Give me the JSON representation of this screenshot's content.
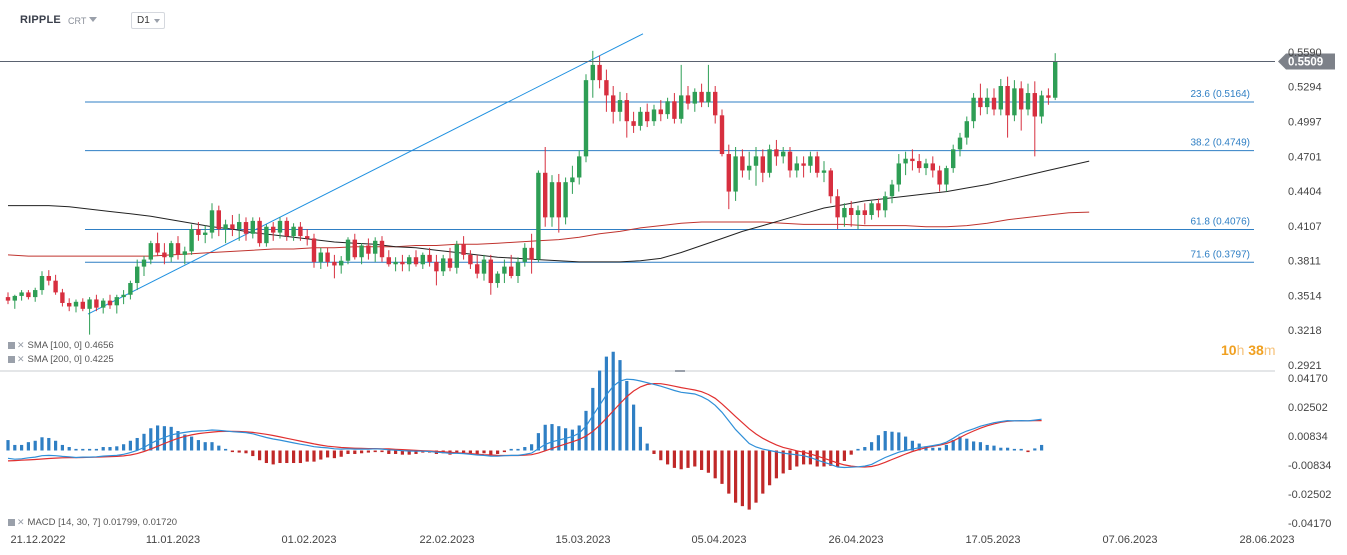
{
  "header": {
    "symbol": "RIPPLE",
    "source": "CRT",
    "timeframe": "D1"
  },
  "timer": {
    "hours": "10",
    "hours_unit": "h",
    "minutes": "38",
    "minutes_unit": "m"
  },
  "indicators": {
    "sma100": {
      "label": "SMA [100, 0]",
      "value": "0.4656"
    },
    "sma200": {
      "label": "SMA [200, 0]",
      "value": "0.4225"
    },
    "macd": {
      "label": "MACD [14, 30, 7]",
      "value1": "0.01799",
      "value2": "0.01720"
    }
  },
  "colors": {
    "up": "#2e9e55",
    "down": "#d72f3f",
    "sma100": "#222222",
    "sma200": "#c0342f",
    "macd_line": "#2f8fd8",
    "signal_line": "#e03030",
    "hist_pos": "#2f7fc4",
    "hist_neg": "#c02828",
    "fib": "#2f7fc4",
    "price_tag": "#7d8189"
  },
  "chart_data": {
    "type": "candlestick",
    "price_axis": {
      "ticks": [
        "0.5590",
        "0.5294",
        "0.4997",
        "0.4701",
        "0.4404",
        "0.4107",
        "0.3811",
        "0.3514",
        "0.3218",
        "0.2921"
      ],
      "ylim": [
        0.29,
        0.585
      ]
    },
    "current_price": {
      "value": 0.5509,
      "label": "0.5509"
    },
    "macd_axis": {
      "ticks": [
        "0.04170",
        "0.02502",
        "0.00834",
        "-0.00834",
        "-0.02502",
        "-0.04170"
      ],
      "ylim": [
        -0.043,
        0.043
      ]
    },
    "x_ticks": [
      "21.12.2022",
      "11.01.2023",
      "01.02.2023",
      "22.02.2023",
      "15.03.2023",
      "05.04.2023",
      "26.04.2023",
      "17.05.2023",
      "07.06.2023",
      "28.06.2023"
    ],
    "fibonacci": [
      {
        "level": "23.6",
        "label": "23.6 (0.5164)",
        "price": 0.5164
      },
      {
        "level": "38.2",
        "label": "38.2 (0.4749)",
        "price": 0.4749
      },
      {
        "level": "61.8",
        "label": "61.8 (0.4076)",
        "price": 0.4076
      },
      {
        "level": "71.6",
        "label": "71.6 (0.3797)",
        "price": 0.3797
      }
    ],
    "trendline": {
      "from": {
        "day": 0,
        "price": 0.3355
      },
      "to": {
        "day": 94,
        "price": 0.5745
      }
    },
    "candles": [
      [
        0.35,
        0.354,
        0.344,
        0.347
      ],
      [
        0.347,
        0.352,
        0.34,
        0.351
      ],
      [
        0.351,
        0.356,
        0.347,
        0.354
      ],
      [
        0.354,
        0.356,
        0.348,
        0.35
      ],
      [
        0.35,
        0.358,
        0.346,
        0.356
      ],
      [
        0.356,
        0.372,
        0.352,
        0.368
      ],
      [
        0.368,
        0.373,
        0.36,
        0.364
      ],
      [
        0.364,
        0.369,
        0.352,
        0.354
      ],
      [
        0.354,
        0.357,
        0.342,
        0.345
      ],
      [
        0.345,
        0.349,
        0.338,
        0.342
      ],
      [
        0.342,
        0.348,
        0.337,
        0.346
      ],
      [
        0.346,
        0.349,
        0.338,
        0.34
      ],
      [
        0.34,
        0.35,
        0.318,
        0.348
      ],
      [
        0.348,
        0.352,
        0.338,
        0.341
      ],
      [
        0.341,
        0.349,
        0.336,
        0.347
      ],
      [
        0.347,
        0.352,
        0.34,
        0.343
      ],
      [
        0.343,
        0.352,
        0.336,
        0.35
      ],
      [
        0.35,
        0.356,
        0.344,
        0.352
      ],
      [
        0.352,
        0.364,
        0.348,
        0.362
      ],
      [
        0.362,
        0.382,
        0.356,
        0.376
      ],
      [
        0.376,
        0.385,
        0.368,
        0.382
      ],
      [
        0.382,
        0.398,
        0.378,
        0.396
      ],
      [
        0.396,
        0.405,
        0.385,
        0.388
      ],
      [
        0.388,
        0.396,
        0.378,
        0.384
      ],
      [
        0.384,
        0.398,
        0.38,
        0.396
      ],
      [
        0.396,
        0.402,
        0.382,
        0.386
      ],
      [
        0.386,
        0.393,
        0.378,
        0.389
      ],
      [
        0.389,
        0.412,
        0.386,
        0.408
      ],
      [
        0.408,
        0.414,
        0.398,
        0.403
      ],
      [
        0.403,
        0.411,
        0.396,
        0.405
      ],
      [
        0.405,
        0.43,
        0.4,
        0.424
      ],
      [
        0.424,
        0.428,
        0.402,
        0.408
      ],
      [
        0.408,
        0.416,
        0.396,
        0.412
      ],
      [
        0.412,
        0.42,
        0.402,
        0.408
      ],
      [
        0.408,
        0.421,
        0.398,
        0.414
      ],
      [
        0.414,
        0.418,
        0.398,
        0.404
      ],
      [
        0.404,
        0.418,
        0.4,
        0.415
      ],
      [
        0.415,
        0.418,
        0.393,
        0.396
      ],
      [
        0.396,
        0.412,
        0.393,
        0.41
      ],
      [
        0.41,
        0.414,
        0.398,
        0.405
      ],
      [
        0.405,
        0.418,
        0.4,
        0.415
      ],
      [
        0.415,
        0.418,
        0.398,
        0.402
      ],
      [
        0.402,
        0.413,
        0.398,
        0.41
      ],
      [
        0.41,
        0.414,
        0.398,
        0.402
      ],
      [
        0.402,
        0.408,
        0.394,
        0.4
      ],
      [
        0.4,
        0.404,
        0.375,
        0.38
      ],
      [
        0.38,
        0.392,
        0.374,
        0.388
      ],
      [
        0.388,
        0.392,
        0.376,
        0.38
      ],
      [
        0.38,
        0.386,
        0.366,
        0.377
      ],
      [
        0.377,
        0.385,
        0.37,
        0.381
      ],
      [
        0.381,
        0.401,
        0.378,
        0.399
      ],
      [
        0.399,
        0.404,
        0.382,
        0.384
      ],
      [
        0.384,
        0.396,
        0.378,
        0.394
      ],
      [
        0.394,
        0.4,
        0.382,
        0.387
      ],
      [
        0.387,
        0.401,
        0.38,
        0.398
      ],
      [
        0.398,
        0.402,
        0.38,
        0.384
      ],
      [
        0.384,
        0.39,
        0.376,
        0.378
      ],
      [
        0.378,
        0.384,
        0.372,
        0.38
      ],
      [
        0.38,
        0.386,
        0.372,
        0.378
      ],
      [
        0.378,
        0.386,
        0.372,
        0.384
      ],
      [
        0.384,
        0.39,
        0.376,
        0.378
      ],
      [
        0.378,
        0.388,
        0.374,
        0.386
      ],
      [
        0.386,
        0.392,
        0.376,
        0.38
      ],
      [
        0.38,
        0.386,
        0.36,
        0.372
      ],
      [
        0.372,
        0.386,
        0.368,
        0.383
      ],
      [
        0.383,
        0.392,
        0.372,
        0.375
      ],
      [
        0.375,
        0.398,
        0.37,
        0.395
      ],
      [
        0.395,
        0.402,
        0.382,
        0.386
      ],
      [
        0.386,
        0.39,
        0.374,
        0.378
      ],
      [
        0.378,
        0.386,
        0.366,
        0.37
      ],
      [
        0.37,
        0.386,
        0.364,
        0.382
      ],
      [
        0.382,
        0.386,
        0.352,
        0.362
      ],
      [
        0.362,
        0.372,
        0.358,
        0.37
      ],
      [
        0.37,
        0.382,
        0.362,
        0.376
      ],
      [
        0.376,
        0.386,
        0.366,
        0.368
      ],
      [
        0.368,
        0.384,
        0.362,
        0.38
      ],
      [
        0.38,
        0.396,
        0.376,
        0.392
      ],
      [
        0.392,
        0.404,
        0.37,
        0.382
      ],
      [
        0.382,
        0.458,
        0.38,
        0.456
      ],
      [
        0.456,
        0.478,
        0.41,
        0.418
      ],
      [
        0.418,
        0.454,
        0.41,
        0.448
      ],
      [
        0.448,
        0.455,
        0.405,
        0.418
      ],
      [
        0.418,
        0.452,
        0.412,
        0.448
      ],
      [
        0.448,
        0.462,
        0.438,
        0.452
      ],
      [
        0.452,
        0.475,
        0.446,
        0.47
      ],
      [
        0.47,
        0.54,
        0.465,
        0.535
      ],
      [
        0.535,
        0.56,
        0.52,
        0.548
      ],
      [
        0.548,
        0.556,
        0.528,
        0.535
      ],
      [
        0.535,
        0.544,
        0.508,
        0.522
      ],
      [
        0.522,
        0.53,
        0.498,
        0.508
      ],
      [
        0.508,
        0.525,
        0.5,
        0.518
      ],
      [
        0.518,
        0.524,
        0.486,
        0.5
      ],
      [
        0.5,
        0.508,
        0.49,
        0.496
      ],
      [
        0.496,
        0.512,
        0.492,
        0.508
      ],
      [
        0.508,
        0.515,
        0.495,
        0.5
      ],
      [
        0.5,
        0.514,
        0.496,
        0.51
      ],
      [
        0.51,
        0.518,
        0.5,
        0.506
      ],
      [
        0.506,
        0.52,
        0.502,
        0.517
      ],
      [
        0.517,
        0.524,
        0.498,
        0.502
      ],
      [
        0.502,
        0.548,
        0.498,
        0.522
      ],
      [
        0.522,
        0.53,
        0.51,
        0.515
      ],
      [
        0.515,
        0.528,
        0.508,
        0.525
      ],
      [
        0.525,
        0.532,
        0.512,
        0.516
      ],
      [
        0.516,
        0.548,
        0.512,
        0.525
      ],
      [
        0.525,
        0.53,
        0.498,
        0.505
      ],
      [
        0.505,
        0.51,
        0.47,
        0.472
      ],
      [
        0.472,
        0.48,
        0.425,
        0.44
      ],
      [
        0.44,
        0.478,
        0.432,
        0.47
      ],
      [
        0.47,
        0.476,
        0.452,
        0.458
      ],
      [
        0.458,
        0.474,
        0.45,
        0.462
      ],
      [
        0.462,
        0.478,
        0.445,
        0.47
      ],
      [
        0.47,
        0.476,
        0.448,
        0.456
      ],
      [
        0.456,
        0.48,
        0.452,
        0.476
      ],
      [
        0.476,
        0.484,
        0.462,
        0.47
      ],
      [
        0.47,
        0.478,
        0.464,
        0.474
      ],
      [
        0.474,
        0.478,
        0.452,
        0.458
      ],
      [
        0.458,
        0.47,
        0.452,
        0.464
      ],
      [
        0.464,
        0.47,
        0.452,
        0.462
      ],
      [
        0.462,
        0.474,
        0.456,
        0.47
      ],
      [
        0.47,
        0.474,
        0.452,
        0.456
      ],
      [
        0.456,
        0.466,
        0.448,
        0.458
      ],
      [
        0.458,
        0.46,
        0.43,
        0.436
      ],
      [
        0.436,
        0.442,
        0.408,
        0.418
      ],
      [
        0.418,
        0.43,
        0.41,
        0.426
      ],
      [
        0.426,
        0.432,
        0.41,
        0.42
      ],
      [
        0.42,
        0.428,
        0.408,
        0.424
      ],
      [
        0.424,
        0.43,
        0.412,
        0.42
      ],
      [
        0.42,
        0.432,
        0.416,
        0.43
      ],
      [
        0.43,
        0.434,
        0.418,
        0.424
      ],
      [
        0.424,
        0.44,
        0.418,
        0.436
      ],
      [
        0.436,
        0.45,
        0.43,
        0.446
      ],
      [
        0.446,
        0.472,
        0.44,
        0.464
      ],
      [
        0.464,
        0.474,
        0.454,
        0.468
      ],
      [
        0.468,
        0.476,
        0.458,
        0.466
      ],
      [
        0.466,
        0.472,
        0.456,
        0.46
      ],
      [
        0.46,
        0.468,
        0.454,
        0.464
      ],
      [
        0.464,
        0.47,
        0.452,
        0.458
      ],
      [
        0.458,
        0.462,
        0.44,
        0.446
      ],
      [
        0.446,
        0.462,
        0.44,
        0.46
      ],
      [
        0.46,
        0.48,
        0.456,
        0.476
      ],
      [
        0.476,
        0.49,
        0.47,
        0.486
      ],
      [
        0.486,
        0.504,
        0.48,
        0.5
      ],
      [
        0.5,
        0.524,
        0.494,
        0.52
      ],
      [
        0.52,
        0.532,
        0.505,
        0.512
      ],
      [
        0.512,
        0.528,
        0.506,
        0.52
      ],
      [
        0.52,
        0.528,
        0.505,
        0.51
      ],
      [
        0.51,
        0.536,
        0.505,
        0.53
      ],
      [
        0.53,
        0.538,
        0.486,
        0.505
      ],
      [
        0.505,
        0.535,
        0.5,
        0.528
      ],
      [
        0.528,
        0.534,
        0.492,
        0.51
      ],
      [
        0.51,
        0.532,
        0.505,
        0.524
      ],
      [
        0.524,
        0.534,
        0.47,
        0.504
      ],
      [
        0.504,
        0.526,
        0.498,
        0.522
      ],
      [
        0.522,
        0.528,
        0.514,
        0.52
      ],
      [
        0.52,
        0.558,
        0.518,
        0.5509
      ]
    ],
    "macd": [
      -0.0045,
      -0.005,
      -0.0048,
      -0.0042,
      -0.0038,
      -0.003,
      -0.0028,
      -0.003,
      -0.0034,
      -0.0036,
      -0.004,
      -0.0038,
      -0.0038,
      -0.0036,
      -0.0032,
      -0.003,
      -0.0028,
      -0.0022,
      -0.0012,
      0.0,
      0.0018,
      0.004,
      0.006,
      0.0075,
      0.009,
      0.0098,
      0.0104,
      0.011,
      0.0112,
      0.0114,
      0.0118,
      0.0116,
      0.0112,
      0.0108,
      0.0106,
      0.0103,
      0.0096,
      0.0085,
      0.0075,
      0.0066,
      0.006,
      0.0052,
      0.0044,
      0.0036,
      0.003,
      0.0022,
      0.0018,
      0.0015,
      0.001,
      0.0008,
      0.001,
      0.0008,
      0.0008,
      0.0008,
      0.001,
      0.0008,
      0.0004,
      0.0002,
      -0.0001,
      -0.0003,
      -0.0004,
      -0.0004,
      -0.0006,
      -0.001,
      -0.0012,
      -0.0016,
      -0.0016,
      -0.0018,
      -0.0022,
      -0.0026,
      -0.0028,
      -0.0032,
      -0.0033,
      -0.003,
      -0.0028,
      -0.0028,
      -0.0022,
      -0.0015,
      0.001,
      0.0035,
      0.005,
      0.006,
      0.007,
      0.008,
      0.01,
      0.014,
      0.02,
      0.026,
      0.032,
      0.037,
      0.04,
      0.041,
      0.0408,
      0.04,
      0.039,
      0.038,
      0.037,
      0.0358,
      0.0345,
      0.0335,
      0.033,
      0.0325,
      0.031,
      0.029,
      0.026,
      0.022,
      0.017,
      0.012,
      0.008,
      0.004,
      0.002,
      0.0008,
      0.0,
      -0.0008,
      -0.0015,
      -0.002,
      -0.0025,
      -0.003,
      -0.004,
      -0.0055,
      -0.0068,
      -0.008,
      -0.0095,
      -0.0098,
      -0.0096,
      -0.0094,
      -0.009,
      -0.008,
      -0.006,
      -0.004,
      -0.0025,
      -0.001,
      0.0,
      0.0008,
      0.0016,
      0.0022,
      0.0028,
      0.0035,
      0.0048,
      0.007,
      0.0095,
      0.0112,
      0.0125,
      0.014,
      0.015,
      0.016,
      0.0166,
      0.0172,
      0.017,
      0.0172,
      0.017,
      0.0175,
      0.018
    ],
    "signal": [
      -0.006,
      -0.0058,
      -0.0056,
      -0.0054,
      -0.0052,
      -0.0049,
      -0.0046,
      -0.0044,
      -0.0042,
      -0.0041,
      -0.0041,
      -0.004,
      -0.0039,
      -0.0038,
      -0.0037,
      -0.0035,
      -0.0034,
      -0.0031,
      -0.0026,
      -0.0018,
      -0.0006,
      0.0008,
      0.0024,
      0.004,
      0.0056,
      0.007,
      0.0081,
      0.009,
      0.0097,
      0.0102,
      0.0106,
      0.0109,
      0.011,
      0.011,
      0.0109,
      0.0107,
      0.0104,
      0.0099,
      0.0093,
      0.0086,
      0.0078,
      0.007,
      0.0062,
      0.0054,
      0.0046,
      0.0038,
      0.0031,
      0.0025,
      0.0021,
      0.0017,
      0.0015,
      0.0013,
      0.0012,
      0.0011,
      0.0011,
      0.001,
      0.0009,
      0.0007,
      0.0005,
      0.0003,
      0.0001,
      -0.0001,
      -0.0003,
      -0.0005,
      -0.0008,
      -0.001,
      -0.0013,
      -0.0015,
      -0.0018,
      -0.0021,
      -0.0024,
      -0.0026,
      -0.0028,
      -0.0029,
      -0.0029,
      -0.0029,
      -0.0027,
      -0.0024,
      -0.0015,
      -0.0002,
      0.0012,
      0.0025,
      0.0038,
      0.005,
      0.0064,
      0.0083,
      0.011,
      0.0145,
      0.0185,
      0.0228,
      0.027,
      0.031,
      0.0342,
      0.0366,
      0.038,
      0.0385,
      0.0384,
      0.0378,
      0.037,
      0.0362,
      0.0355,
      0.0348,
      0.0338,
      0.0322,
      0.03,
      0.0268,
      0.0232,
      0.0195,
      0.016,
      0.0125,
      0.0095,
      0.007,
      0.005,
      0.0032,
      0.0018,
      0.0008,
      -0.0002,
      -0.001,
      -0.002,
      -0.0032,
      -0.0045,
      -0.0058,
      -0.0072,
      -0.0083,
      -0.009,
      -0.0094,
      -0.0095,
      -0.0092,
      -0.0082,
      -0.0068,
      -0.0052,
      -0.0036,
      -0.002,
      -0.0006,
      0.0006,
      0.0016,
      0.0024,
      0.0031,
      0.004,
      0.0055,
      0.0075,
      0.0095,
      0.0112,
      0.0128,
      0.0142,
      0.0153,
      0.0162,
      0.0168,
      0.017,
      0.017,
      0.0171,
      0.0172,
      0.0172
    ],
    "sma100": {
      "start_day": 0,
      "values": [
        0.428,
        0.428,
        0.428,
        0.427,
        0.425,
        0.423,
        0.421,
        0.419,
        0.416,
        0.413,
        0.41,
        0.408,
        0.405,
        0.403,
        0.401,
        0.399,
        0.397,
        0.396,
        0.395,
        0.393,
        0.392,
        0.39,
        0.388,
        0.386,
        0.384,
        0.383,
        0.382,
        0.381,
        0.38,
        0.38,
        0.38,
        0.381,
        0.383,
        0.388,
        0.394,
        0.4,
        0.406,
        0.411,
        0.416,
        0.421,
        0.426,
        0.429,
        0.432,
        0.434,
        0.436,
        0.438,
        0.44,
        0.443,
        0.446,
        0.45,
        0.454,
        0.458,
        0.462,
        0.466
      ],
      "step": 3
    },
    "sma200": {
      "start_day": 0,
      "values": [
        0.386,
        0.385,
        0.385,
        0.385,
        0.385,
        0.385,
        0.385,
        0.385,
        0.386,
        0.387,
        0.388,
        0.389,
        0.39,
        0.391,
        0.391,
        0.392,
        0.392,
        0.393,
        0.393,
        0.393,
        0.394,
        0.394,
        0.395,
        0.395,
        0.396,
        0.397,
        0.398,
        0.399,
        0.401,
        0.404,
        0.406,
        0.409,
        0.411,
        0.413,
        0.414,
        0.414,
        0.414,
        0.414,
        0.413,
        0.412,
        0.412,
        0.412,
        0.411,
        0.411,
        0.411,
        0.41,
        0.41,
        0.411,
        0.413,
        0.416,
        0.418,
        0.42,
        0.422,
        0.4225
      ],
      "step": 3
    }
  }
}
